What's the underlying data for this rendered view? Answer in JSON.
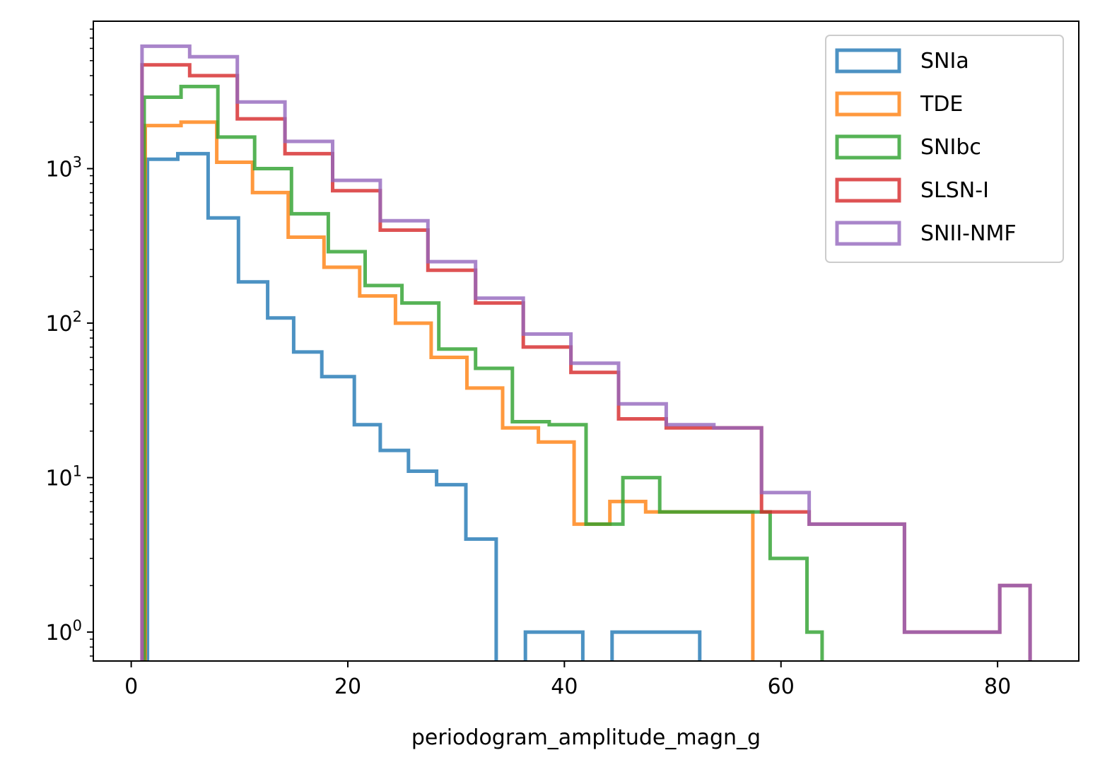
{
  "chart_data": {
    "type": "histogram",
    "title": "",
    "xlabel": "periodogram_amplitude_magn_g",
    "ylabel": "",
    "xlim": [
      -3.5,
      87.5
    ],
    "ylim": [
      0.65,
      9000
    ],
    "yscale": "log",
    "xticks": [
      0,
      20,
      40,
      60,
      80
    ],
    "xtick_labels": [
      "0",
      "20",
      "40",
      "60",
      "80"
    ],
    "yticks": [
      1,
      10,
      100,
      1000
    ],
    "ytick_labels": [
      {
        "base": "10",
        "exp": "0"
      },
      {
        "base": "10",
        "exp": "1"
      },
      {
        "base": "10",
        "exp": "2"
      },
      {
        "base": "10",
        "exp": "3"
      }
    ],
    "histtype": "step",
    "grid": false,
    "legend_position": "top-right",
    "series": [
      {
        "name": "SNIa",
        "color": "#1f77b4",
        "bin_edges": [
          1.5,
          4.3,
          7.1,
          9.9,
          12.6,
          15.0,
          17.6,
          20.6,
          23.0,
          25.6,
          28.2,
          30.9,
          33.7,
          36.4,
          39.0,
          41.7,
          44.4,
          47.1,
          49.8,
          52.5
        ],
        "counts": [
          1150,
          1250,
          480,
          185,
          108,
          65,
          45,
          22,
          15,
          11,
          9,
          4,
          0,
          1,
          1,
          0,
          1,
          1,
          1
        ]
      },
      {
        "name": "TDE",
        "color": "#ff7f0e",
        "bin_edges": [
          1.3,
          4.6,
          7.9,
          11.2,
          14.5,
          17.8,
          21.1,
          24.4,
          27.7,
          31.0,
          34.3,
          37.6,
          40.9,
          44.2,
          47.5,
          50.8,
          54.1,
          57.4
        ],
        "counts": [
          1900,
          2000,
          1100,
          700,
          360,
          230,
          150,
          100,
          60,
          38,
          21,
          17,
          5,
          7,
          6,
          6,
          6
        ]
      },
      {
        "name": "SNIbc",
        "color": "#2ca02c",
        "bin_edges": [
          1.2,
          4.6,
          8.0,
          11.4,
          14.8,
          18.2,
          21.6,
          25.0,
          28.4,
          31.8,
          35.2,
          38.6,
          42.0,
          45.4,
          48.8,
          52.2,
          55.6,
          59.0,
          62.4,
          63.8
        ],
        "counts": [
          2900,
          3400,
          1600,
          1000,
          510,
          290,
          175,
          135,
          68,
          51,
          23,
          22,
          5,
          10,
          6,
          6,
          6,
          3,
          1
        ]
      },
      {
        "name": "SLSN-I",
        "color": "#d62728",
        "bin_edges": [
          1.0,
          5.4,
          9.8,
          14.2,
          18.6,
          23.0,
          27.4,
          31.8,
          36.2,
          40.6,
          45.0,
          49.4,
          53.8,
          58.2,
          62.6,
          67.0,
          71.4,
          75.8,
          80.2,
          83.0
        ],
        "counts": [
          4700,
          4000,
          2100,
          1250,
          720,
          400,
          220,
          135,
          70,
          48,
          24,
          21,
          21,
          6,
          5,
          5,
          1,
          1,
          2
        ]
      },
      {
        "name": "SNII-NMF",
        "color": "#9467bd",
        "bin_edges": [
          1.0,
          5.4,
          9.8,
          14.2,
          18.6,
          23.0,
          27.4,
          31.8,
          36.2,
          40.6,
          45.0,
          49.4,
          53.8,
          58.2,
          62.6,
          67.0,
          71.4,
          75.8,
          80.2,
          83.0
        ],
        "counts": [
          6200,
          5300,
          2700,
          1500,
          840,
          460,
          250,
          145,
          85,
          55,
          30,
          22,
          21,
          8,
          5,
          5,
          1,
          1,
          2
        ]
      }
    ]
  }
}
